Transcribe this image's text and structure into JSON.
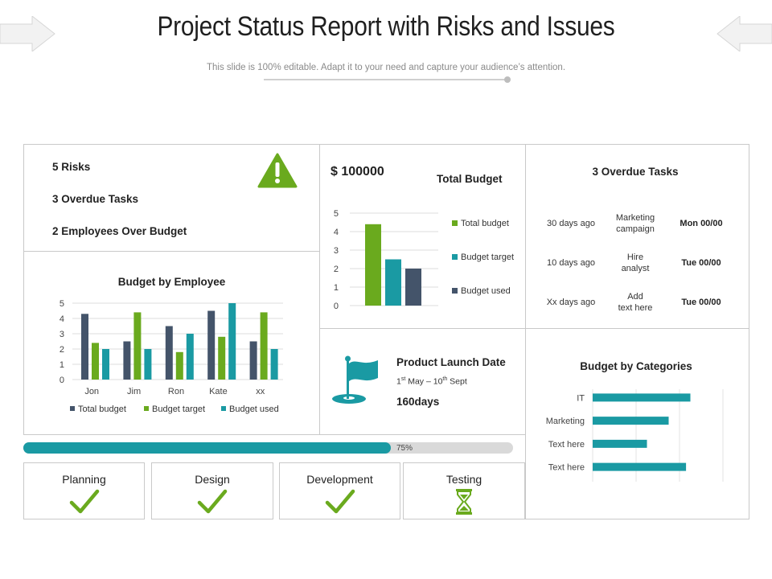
{
  "header": {
    "title": "Project Status Report with Risks and Issues",
    "subtitle": "This slide is 100% editable. Adapt it to your need and capture your audience’s attention."
  },
  "summary": {
    "items": [
      "5 Risks",
      "3 Overdue Tasks",
      "2 Employees Over Budget"
    ],
    "warning_icon": "warning-triangle-icon"
  },
  "total_budget": {
    "amount": "$ 100000",
    "title": "Total Budget"
  },
  "overdue": {
    "title": "3 Overdue Tasks",
    "rows": [
      {
        "ago": "30 days ago",
        "task_line1": "Marketing",
        "task_line2": "campaign",
        "date": "Mon 00/00"
      },
      {
        "ago": "10 days ago",
        "task_line1": "Hire",
        "task_line2": "analyst",
        "date": "Tue 00/00"
      },
      {
        "ago": "Xx days ago",
        "task_line1": "Add",
        "task_line2": "text here",
        "date": "Tue 00/00"
      }
    ]
  },
  "launch": {
    "title": "Product Launch Date",
    "range_start_day": "1",
    "range_start_sup": "st",
    "range_start_month": " May – 10",
    "range_end_sup": "th",
    "range_end_month": " Sept",
    "days": "160days",
    "icon": "flag-icon"
  },
  "progress": {
    "percent": 75,
    "label": "75%"
  },
  "phases": [
    {
      "label": "Planning",
      "status": "done"
    },
    {
      "label": "Design",
      "status": "done"
    },
    {
      "label": "Development",
      "status": "done"
    },
    {
      "label": "Testing",
      "status": "in-progress"
    }
  ],
  "colors": {
    "green": "#6aaa1e",
    "teal": "#1a9aa3",
    "slate": "#44546a",
    "warn": "#6aaa1e"
  },
  "chart_data": [
    {
      "id": "budget-by-employee",
      "type": "bar",
      "title": "Budget by Employee",
      "categories": [
        "Jon",
        "Jim",
        "Ron",
        "Kate",
        "xx"
      ],
      "series": [
        {
          "name": "Total budget",
          "values": [
            4.3,
            2.5,
            3.5,
            4.5,
            2.5
          ],
          "color": "#44546a"
        },
        {
          "name": "Budget target",
          "values": [
            2.4,
            4.4,
            1.8,
            2.8,
            4.4
          ],
          "color": "#6aaa1e"
        },
        {
          "name": "Budget used",
          "values": [
            2.0,
            2.0,
            3.0,
            5.0,
            2.0
          ],
          "color": "#1a9aa3"
        }
      ],
      "yticks": [
        "0",
        "1",
        "2",
        "3",
        "4",
        "5"
      ],
      "ylim": [
        0,
        5
      ],
      "legend": "bottom"
    },
    {
      "id": "total-budget",
      "type": "bar",
      "title": "Total Budget",
      "categories": [
        "Total budget",
        "Budget target",
        "Budget used"
      ],
      "values": [
        4.4,
        2.5,
        2.0
      ],
      "colors": [
        "#6aaa1e",
        "#1a9aa3",
        "#44546a"
      ],
      "yticks": [
        "0",
        "1",
        "2",
        "3",
        "4",
        "5"
      ],
      "ylim": [
        0,
        5
      ],
      "legend": "right"
    },
    {
      "id": "budget-by-categories",
      "type": "bar",
      "orientation": "horizontal",
      "title": "Budget by Categories",
      "categories": [
        "IT",
        "Marketing",
        "Text here",
        "Text here"
      ],
      "values": [
        4.5,
        3.5,
        2.5,
        4.3
      ],
      "xlim": [
        0,
        6
      ],
      "color": "#1a9aa3"
    }
  ]
}
